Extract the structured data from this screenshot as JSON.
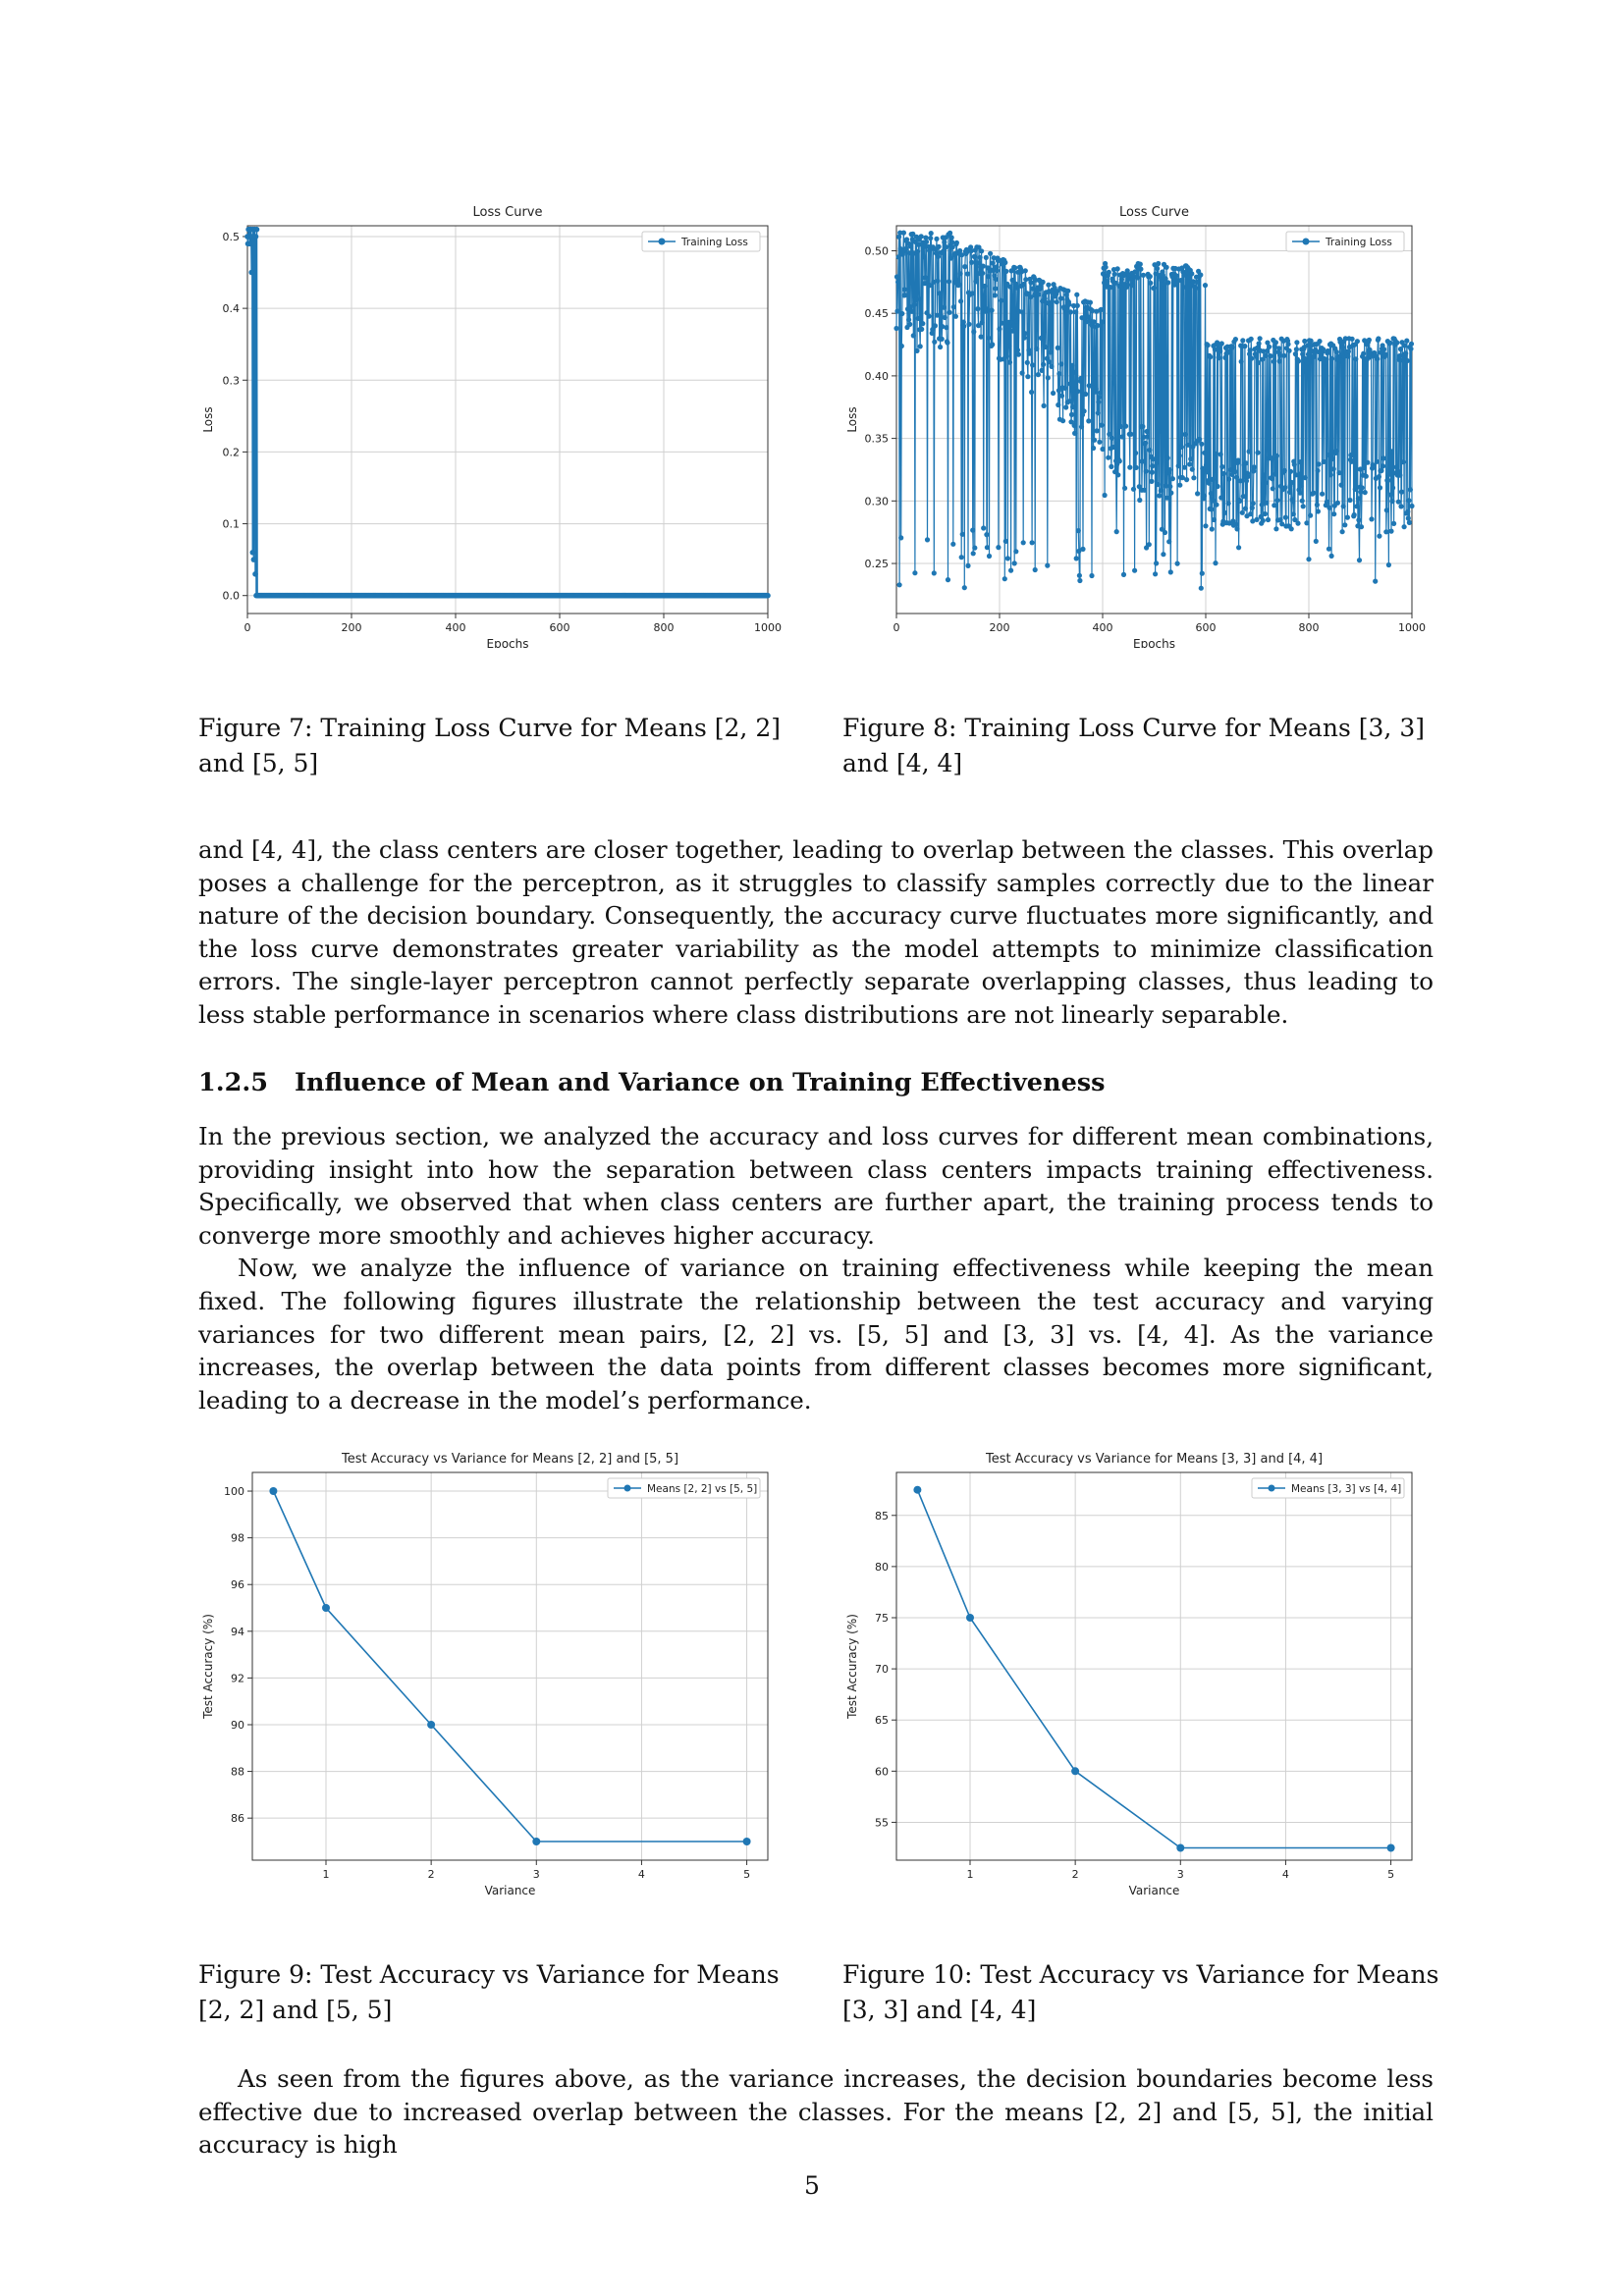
{
  "figures": [
    {
      "caption": "Figure 7: Training Loss Curve for Means [2, 2] and [5, 5]",
      "chart_data": {
        "type": "line",
        "title": "Loss Curve",
        "xlabel": "Epochs",
        "ylabel": "Loss",
        "xlim": [
          0,
          1000
        ],
        "ylim": [
          -0.025,
          0.515
        ],
        "xticks": [
          0,
          200,
          400,
          600,
          800,
          1000
        ],
        "yticks": [
          0.0,
          0.1,
          0.2,
          0.3,
          0.4,
          0.5
        ],
        "ytick_labels": [
          "0.0",
          "0.1",
          "0.2",
          "0.3",
          "0.4",
          "0.5"
        ],
        "grid": true,
        "legend": "top-right",
        "color": "#1f77b4",
        "series": [
          {
            "name": "Training Loss"
          }
        ]
      }
    },
    {
      "caption": "Figure 8: Training Loss Curve for Means [3, 3] and [4, 4]",
      "chart_data": {
        "type": "line",
        "title": "Loss Curve",
        "xlabel": "Epochs",
        "ylabel": "Loss",
        "xlim": [
          0,
          1000
        ],
        "ylim": [
          0.21,
          0.52
        ],
        "xticks": [
          0,
          200,
          400,
          600,
          800,
          1000
        ],
        "yticks": [
          0.25,
          0.3,
          0.35,
          0.4,
          0.45,
          0.5
        ],
        "ytick_labels": [
          "0.25",
          "0.30",
          "0.35",
          "0.40",
          "0.45",
          "0.50"
        ],
        "grid": true,
        "legend": "top-right",
        "color": "#1f77b4",
        "series": [
          {
            "name": "Training Loss"
          }
        ]
      }
    },
    {
      "caption": "Figure 9: Test Accuracy vs Variance for Means [2, 2] and [5, 5]",
      "chart_data": {
        "type": "line",
        "title": "Test Accuracy vs Variance for Means [2, 2] and [5, 5]",
        "xlabel": "Variance",
        "ylabel": "Test Accuracy (%)",
        "xlim": [
          0.3,
          5.2
        ],
        "ylim": [
          84.2,
          100.8
        ],
        "xticks": [
          1,
          2,
          3,
          4,
          5
        ],
        "yticks": [
          86,
          88,
          90,
          92,
          94,
          96,
          98,
          100
        ],
        "grid": true,
        "legend": "top-right",
        "color": "#1f77b4",
        "series": [
          {
            "name": "Means [2, 2] vs [5, 5]",
            "x": [
              0.5,
              1,
              2,
              3,
              5
            ],
            "y": [
              100,
              95,
              90,
              85,
              85
            ]
          }
        ]
      }
    },
    {
      "caption": "Figure 10: Test Accuracy vs Variance for Means [3, 3] and [4, 4]",
      "chart_data": {
        "type": "line",
        "title": "Test Accuracy vs Variance for Means [3, 3] and [4, 4]",
        "xlabel": "Variance",
        "ylabel": "Test Accuracy (%)",
        "xlim": [
          0.3,
          5.2
        ],
        "ylim": [
          51.3,
          89.2
        ],
        "xticks": [
          1,
          2,
          3,
          4,
          5
        ],
        "yticks": [
          55,
          60,
          65,
          70,
          75,
          80,
          85
        ],
        "grid": true,
        "legend": "top-right",
        "color": "#1f77b4",
        "series": [
          {
            "name": "Means [3, 3] vs [4, 4]",
            "x": [
              0.5,
              1,
              2,
              3,
              5
            ],
            "y": [
              87.5,
              75,
              60,
              52.5,
              52.5
            ]
          }
        ]
      }
    }
  ],
  "body": {
    "para1": "and [4, 4], the class centers are closer together, leading to overlap between the classes. This overlap poses a challenge for the perceptron, as it struggles to classify samples correctly due to the linear nature of the decision boundary. Consequently, the accuracy curve fluctuates more significantly, and the loss curve demonstrates greater variability as the model attempts to minimize classification errors. The single-layer perceptron cannot perfectly separate overlapping classes, thus leading to less stable performance in scenarios where class distributions are not linearly separable.",
    "section_number": "1.2.5",
    "section_title": "Influence of Mean and Variance on Training Effectiveness",
    "para2": "In the previous section, we analyzed the accuracy and loss curves for different mean combinations, providing insight into how the separation between class centers impacts training effectiveness. Specifically, we observed that when class centers are further apart, the training process tends to converge more smoothly and achieves higher accuracy.",
    "para3": "Now, we analyze the influence of variance on training effectiveness while keeping the mean fixed. The following figures illustrate the relationship between the test accuracy and varying variances for two different mean pairs, [2, 2] vs. [5, 5] and [3, 3] vs. [4, 4]. As the variance increases, the overlap between the data points from different classes becomes more significant, leading to a decrease in the model’s performance.",
    "para4": "As seen from the figures above, as the variance increases, the decision boundaries become less effective due to increased overlap between the classes. For the means [2, 2] and [5, 5], the initial accuracy is high"
  },
  "page_number": "5"
}
